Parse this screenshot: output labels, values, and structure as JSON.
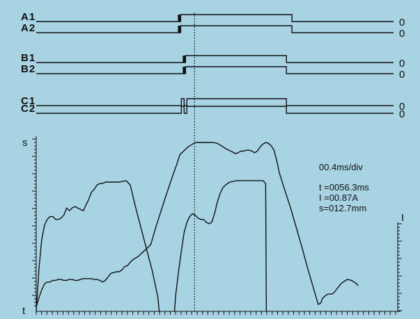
{
  "chart_data": {
    "type": "line",
    "display": {
      "timebase": "00.4ms/div",
      "readouts": [
        "t =0056.3ms",
        "I =00.87A",
        "s=012.7mm"
      ]
    },
    "digital_channels": [
      {
        "name": "A1",
        "zero_label": "0",
        "edges": [
          {
            "t": 2.09,
            "state": "high"
          },
          {
            "t": 3.7,
            "state": "low"
          }
        ],
        "glitch": [
          2.05,
          2.09
        ]
      },
      {
        "name": "A2",
        "zero_label": "0",
        "edges": [
          {
            "t": 2.09,
            "state": "high"
          },
          {
            "t": 3.7,
            "state": "low"
          }
        ],
        "glitch": [
          2.05,
          2.09
        ]
      },
      {
        "name": "B1",
        "zero_label": "0",
        "edges": [
          {
            "t": 2.16,
            "state": "high"
          },
          {
            "t": 3.62,
            "state": "low"
          }
        ],
        "glitch": [
          2.12,
          2.16
        ]
      },
      {
        "name": "B2",
        "zero_label": "0",
        "edges": [
          {
            "t": 2.16,
            "state": "high"
          },
          {
            "t": 3.62,
            "state": "low"
          }
        ],
        "glitch": [
          2.12,
          2.16
        ]
      },
      {
        "name": "C1",
        "zero_label": "0",
        "edges": [
          {
            "t": 2.1,
            "state": "high"
          },
          {
            "t": 2.14,
            "state": "low"
          },
          {
            "t": 2.18,
            "state": "high"
          },
          {
            "t": 3.62,
            "state": "low"
          }
        ]
      },
      {
        "name": "C2",
        "zero_label": "0",
        "edges": [
          {
            "t": 2.1,
            "state": "high"
          },
          {
            "t": 2.14,
            "state": "low"
          },
          {
            "t": 2.18,
            "state": "high"
          },
          {
            "t": 3.62,
            "state": "low"
          }
        ]
      }
    ],
    "x_axis": {
      "label": "t",
      "divisions": 5.2
    },
    "cursor_t": 2.29,
    "left_axis": {
      "label": "s"
    },
    "right_axis": {
      "label": "I"
    },
    "series": [
      {
        "name": "s",
        "axis": "left",
        "points": [
          [
            0.0,
            0.05
          ],
          [
            0.04,
            0.16
          ],
          [
            0.08,
            0.25
          ],
          [
            0.12,
            0.32
          ],
          [
            0.16,
            0.34
          ],
          [
            0.2,
            0.34
          ],
          [
            0.24,
            0.36
          ],
          [
            0.28,
            0.36
          ],
          [
            0.32,
            0.37
          ],
          [
            0.36,
            0.37
          ],
          [
            0.4,
            0.36
          ],
          [
            0.44,
            0.36
          ],
          [
            0.48,
            0.37
          ],
          [
            0.52,
            0.37
          ],
          [
            0.56,
            0.36
          ],
          [
            0.6,
            0.36
          ],
          [
            0.64,
            0.37
          ],
          [
            0.68,
            0.38
          ],
          [
            0.72,
            0.38
          ],
          [
            0.76,
            0.38
          ],
          [
            0.8,
            0.38
          ],
          [
            0.84,
            0.37
          ],
          [
            0.88,
            0.37
          ],
          [
            0.92,
            0.36
          ],
          [
            0.96,
            0.34
          ],
          [
            1.0,
            0.36
          ],
          [
            1.04,
            0.4
          ],
          [
            1.08,
            0.44
          ],
          [
            1.12,
            0.45
          ],
          [
            1.16,
            0.46
          ],
          [
            1.2,
            0.46
          ],
          [
            1.24,
            0.48
          ],
          [
            1.28,
            0.52
          ],
          [
            1.32,
            0.53
          ],
          [
            1.36,
            0.57
          ],
          [
            1.4,
            0.6
          ],
          [
            1.44,
            0.62
          ],
          [
            1.48,
            0.64
          ],
          [
            1.52,
            0.67
          ],
          [
            1.56,
            0.7
          ],
          [
            1.6,
            0.73
          ],
          [
            1.64,
            0.76
          ],
          [
            1.66,
            0.78
          ],
          [
            1.72,
            0.95
          ],
          [
            1.8,
            1.15
          ],
          [
            1.88,
            1.35
          ],
          [
            1.96,
            1.54
          ],
          [
            2.04,
            1.72
          ],
          [
            2.08,
            1.82
          ],
          [
            2.12,
            1.85
          ],
          [
            2.16,
            1.88
          ],
          [
            2.2,
            1.91
          ],
          [
            2.24,
            1.93
          ],
          [
            2.28,
            1.95
          ],
          [
            2.32,
            1.96
          ],
          [
            2.4,
            1.96
          ],
          [
            2.48,
            1.96
          ],
          [
            2.56,
            1.96
          ],
          [
            2.62,
            1.95
          ],
          [
            2.68,
            1.92
          ],
          [
            2.76,
            1.88
          ],
          [
            2.84,
            1.85
          ],
          [
            2.88,
            1.83
          ],
          [
            2.92,
            1.84
          ],
          [
            2.96,
            1.86
          ],
          [
            3.0,
            1.86
          ],
          [
            3.04,
            1.87
          ],
          [
            3.08,
            1.87
          ],
          [
            3.12,
            1.86
          ],
          [
            3.16,
            1.84
          ],
          [
            3.2,
            1.86
          ],
          [
            3.24,
            1.91
          ],
          [
            3.28,
            1.94
          ],
          [
            3.32,
            1.96
          ],
          [
            3.36,
            1.95
          ],
          [
            3.4,
            1.92
          ],
          [
            3.44,
            1.87
          ],
          [
            3.48,
            1.75
          ],
          [
            3.52,
            1.6
          ],
          [
            3.6,
            1.4
          ],
          [
            3.68,
            1.2
          ],
          [
            3.76,
            0.98
          ],
          [
            3.84,
            0.76
          ],
          [
            3.92,
            0.52
          ],
          [
            4.0,
            0.3
          ],
          [
            4.08,
            0.08
          ],
          [
            4.12,
            0.1
          ],
          [
            4.14,
            0.15
          ],
          [
            4.18,
            0.18
          ],
          [
            4.22,
            0.2
          ],
          [
            4.26,
            0.2
          ],
          [
            4.3,
            0.21
          ],
          [
            4.34,
            0.25
          ],
          [
            4.38,
            0.29
          ],
          [
            4.42,
            0.33
          ],
          [
            4.46,
            0.35
          ],
          [
            4.5,
            0.37
          ],
          [
            4.56,
            0.36
          ],
          [
            4.62,
            0.33
          ],
          [
            4.66,
            0.3
          ]
        ]
      },
      {
        "name": "I",
        "axis": "right",
        "points": [
          [
            0.0,
            0.0
          ],
          [
            0.04,
            0.3
          ],
          [
            0.08,
            0.5
          ],
          [
            0.12,
            0.6
          ],
          [
            0.16,
            0.64
          ],
          [
            0.2,
            0.66
          ],
          [
            0.24,
            0.66
          ],
          [
            0.28,
            0.64
          ],
          [
            0.32,
            0.64
          ],
          [
            0.36,
            0.65
          ],
          [
            0.4,
            0.67
          ],
          [
            0.44,
            0.72
          ],
          [
            0.48,
            0.7
          ],
          [
            0.52,
            0.72
          ],
          [
            0.56,
            0.73
          ],
          [
            0.6,
            0.72
          ],
          [
            0.64,
            0.71
          ],
          [
            0.68,
            0.7
          ],
          [
            0.72,
            0.74
          ],
          [
            0.76,
            0.78
          ],
          [
            0.8,
            0.83
          ],
          [
            0.84,
            0.85
          ],
          [
            0.88,
            0.88
          ],
          [
            0.92,
            0.89
          ],
          [
            0.96,
            0.89
          ],
          [
            1.0,
            0.9
          ],
          [
            1.1,
            0.9
          ],
          [
            1.2,
            0.9
          ],
          [
            1.3,
            0.91
          ],
          [
            1.36,
            0.88
          ],
          [
            1.44,
            0.72
          ],
          [
            1.56,
            0.5
          ],
          [
            1.68,
            0.28
          ],
          [
            1.76,
            0.1
          ],
          [
            1.78,
            0.0
          ],
          [
            1.78,
            null
          ],
          [
            2.0,
            0.0
          ],
          [
            2.02,
            0.12
          ],
          [
            2.06,
            0.28
          ],
          [
            2.1,
            0.42
          ],
          [
            2.14,
            0.55
          ],
          [
            2.18,
            0.62
          ],
          [
            2.22,
            0.66
          ],
          [
            2.26,
            0.68
          ],
          [
            2.3,
            0.67
          ],
          [
            2.34,
            0.65
          ],
          [
            2.38,
            0.64
          ],
          [
            2.42,
            0.64
          ],
          [
            2.46,
            0.62
          ],
          [
            2.5,
            0.61
          ],
          [
            2.54,
            0.62
          ],
          [
            2.58,
            0.68
          ],
          [
            2.62,
            0.76
          ],
          [
            2.66,
            0.82
          ],
          [
            2.7,
            0.86
          ],
          [
            2.74,
            0.88
          ],
          [
            2.8,
            0.9
          ],
          [
            2.9,
            0.91
          ],
          [
            3.0,
            0.91
          ],
          [
            3.1,
            0.91
          ],
          [
            3.2,
            0.91
          ],
          [
            3.28,
            0.91
          ],
          [
            3.32,
            0.89
          ],
          [
            3.33,
            0.0
          ]
        ]
      }
    ]
  }
}
